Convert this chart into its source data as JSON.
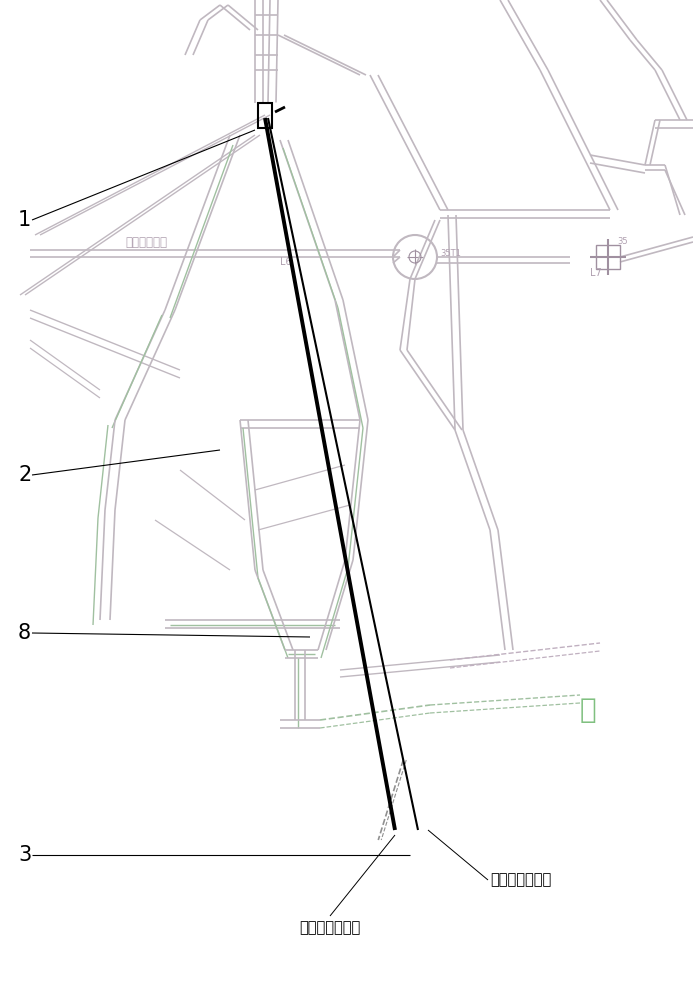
{
  "bg_color": "#ffffff",
  "tc": "#c0b8c0",
  "gc": "#a0c0a0",
  "black": "#000000",
  "gray_dark": "#808080",
  "gray_med": "#b0b0b0",
  "fire_green": "#80c080",
  "label_1": "1",
  "label_2": "2",
  "label_8": "8",
  "label_3": "3",
  "text_jingxia": "井下主变电屋",
  "text_wufenzhi": "无分支定向钔孔",
  "text_youfenzhi": "有分支定向钔孔",
  "text_huo": "火",
  "figsize": [
    6.93,
    10.0
  ],
  "dpi": 100
}
